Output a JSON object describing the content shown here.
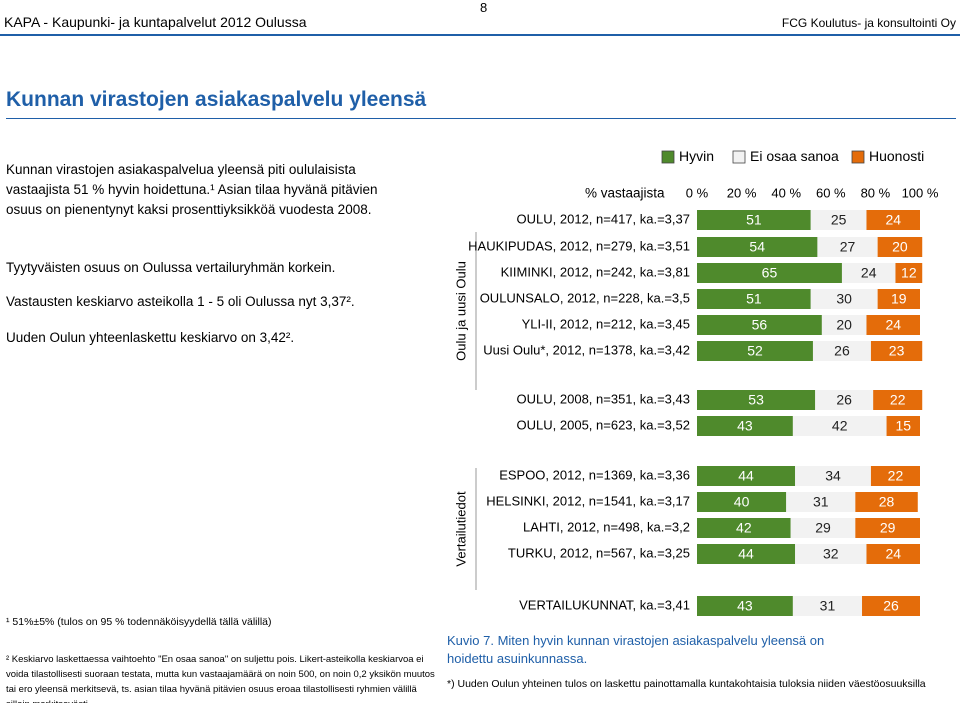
{
  "header": {
    "page_number": "8",
    "left": "KAPA - Kaupunki- ja kuntapalvelut 2012 Oulussa",
    "right": "FCG Koulutus- ja konsultointi Oy"
  },
  "title": "Kunnan virastojen asiakaspalvelu yleensä",
  "paragraphs": [
    "Kunnan virastojen asiakaspalvelua yleensä piti oululaisista vastaajista 51 % hyvin hoidettuna.¹ Asian tilaa hyvänä pitävien osuus on pienentynyt kaksi prosenttiyksikköä vuodesta 2008.",
    "Tyytyväisten osuus on Oulussa vertailuryhmän korkein.",
    "Vastausten keskiarvo asteikolla 1 - 5 oli Oulussa nyt 3,37².",
    "Uuden Oulun yhteenlaskettu keskiarvo on 3,42²."
  ],
  "footnotes": [
    "¹ 51%±5% (tulos on 95 % todennäköisyydellä tällä välillä)",
    "² Keskiarvo laskettaessa vaihtoehto \"En osaa sanoa\" on suljettu pois. Likert-asteikolla keskiarvoa ei voida tilastollisesti suoraan testata, mutta kun vastaajamäärä on noin 500, on noin 0,2 yksikön muutos tai ero yleensä merkitsevä, ts. asian tilaa hyvänä pitävien osuus eroaa tilastollisesti ryhmien välillä silloin merkitsevästi."
  ],
  "caption": "Kuvio 7. Miten hyvin kunnan virastojen asiakaspalvelu yleensä on hoidettu asuinkunnassa.",
  "note": "*) Uuden Oulun yhteinen tulos on laskettu painottamalla kuntakohtaisia tuloksia niiden väestöosuuksilla",
  "chart_data": {
    "type": "bar",
    "orientation": "horizontal",
    "stacked": true,
    "x_axis_label": "% vastaajista",
    "group_labels": [
      "Oulu ja uusi Oulu",
      "Vertailutiedot"
    ],
    "categories": [
      "OULU, 2012, n=417, ka.=3,37",
      "HAUKIPUDAS, 2012, n=279, ka.=3,51",
      "KIIMINKI, 2012, n=242, ka.=3,81",
      "OULUNSALO, 2012, n=228, ka.=3,5",
      "YLI-II, 2012, n=212, ka.=3,45",
      "Uusi Oulu*, 2012, n=1378, ka.=3,42",
      "OULU, 2008, n=351, ka.=3,43",
      "OULU, 2005, n=623, ka.=3,52",
      "ESPOO, 2012, n=1369, ka.=3,36",
      "HELSINKI, 2012, n=1541, ka.=3,17",
      "LAHTI, 2012, n=498, ka.=3,2",
      "TURKU, 2012, n=567, ka.=3,25",
      "VERTAILUKUNNAT, ka.=3,41"
    ],
    "series": [
      {
        "name": "Hyvin",
        "color": "#4f8a2c",
        "values": [
          51,
          54,
          65,
          51,
          56,
          52,
          53,
          43,
          44,
          40,
          42,
          44,
          43
        ]
      },
      {
        "name": "Ei osaa sanoa",
        "color": "#f2f2f2",
        "values": [
          25,
          27,
          24,
          30,
          20,
          26,
          26,
          42,
          34,
          31,
          29,
          32,
          31
        ]
      },
      {
        "name": "Huonosti",
        "color": "#e46c0a",
        "values": [
          24,
          20,
          12,
          19,
          24,
          23,
          22,
          15,
          22,
          28,
          29,
          24,
          26
        ]
      }
    ],
    "xlim": [
      0,
      100
    ],
    "xticks": [
      {
        "value": 0,
        "label": "0 %"
      },
      {
        "value": 20,
        "label": "20 %"
      },
      {
        "value": 40,
        "label": "40 %"
      },
      {
        "value": 60,
        "label": "60 %"
      },
      {
        "value": 80,
        "label": "80 %"
      },
      {
        "value": 100,
        "label": "100 %"
      }
    ]
  }
}
